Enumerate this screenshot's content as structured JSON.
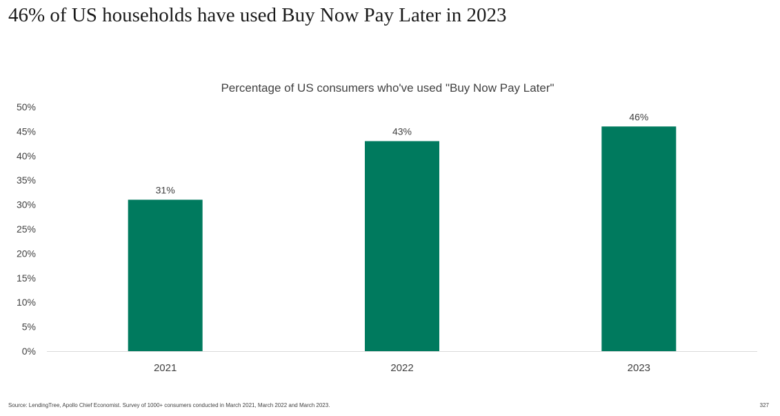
{
  "slide": {
    "title": "46% of US households have used Buy Now Pay Later in 2023",
    "footnote": "Source: LendingTree, Apollo Chief Economist. Survey of 1000+ consumers conducted in March 2021, March 2022 and March 2023.",
    "page_number": "327"
  },
  "chart_data": {
    "type": "bar",
    "title": "Percentage of US consumers who've used \"Buy Now Pay Later\"",
    "categories": [
      "2021",
      "2022",
      "2023"
    ],
    "values": [
      31,
      43,
      46
    ],
    "value_labels": [
      "31%",
      "43%",
      "46%"
    ],
    "y_ticks": [
      "0%",
      "5%",
      "10%",
      "15%",
      "20%",
      "25%",
      "30%",
      "35%",
      "40%",
      "45%",
      "50%"
    ],
    "ylim": [
      0,
      50
    ],
    "grid": false,
    "legend": "none",
    "bar_color": "#007A5E"
  }
}
